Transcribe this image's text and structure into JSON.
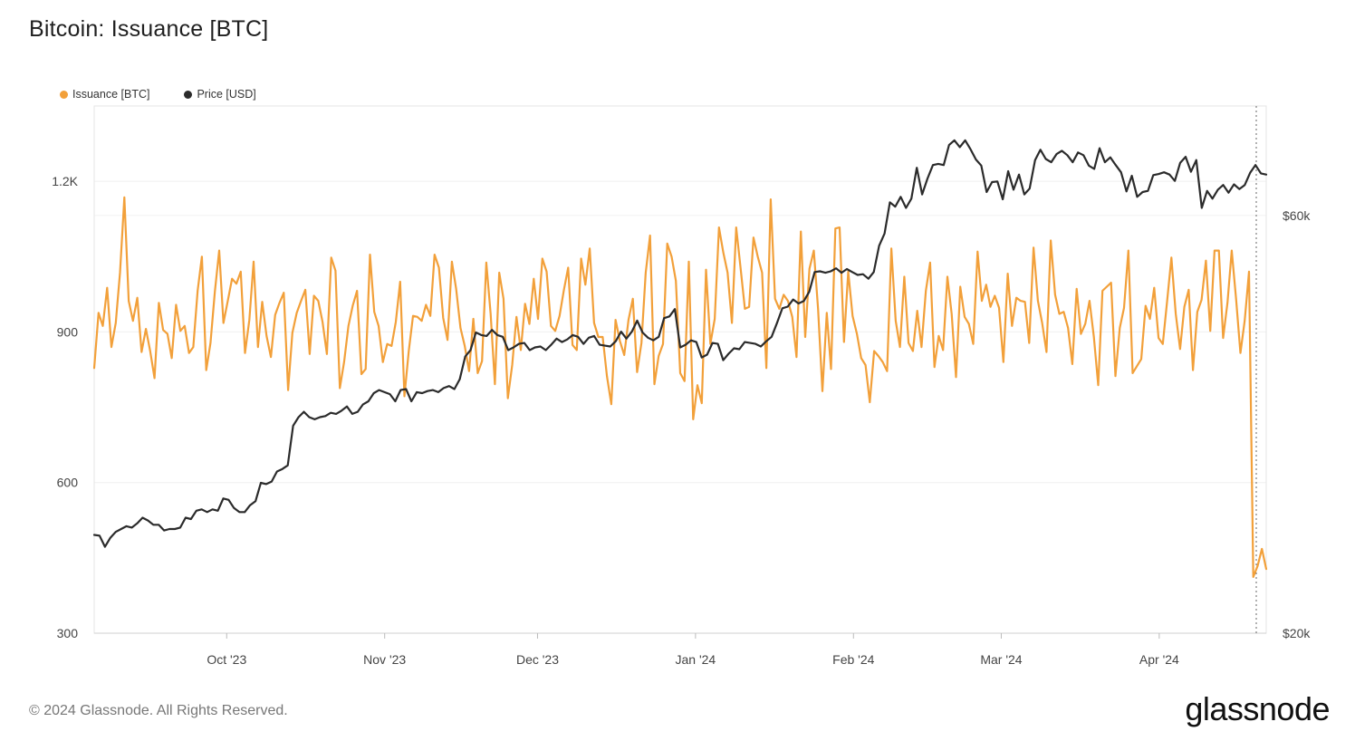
{
  "title": "Bitcoin: Issuance [BTC]",
  "footer": "© 2024 Glassnode. All Rights Reserved.",
  "brand": "glassnode",
  "legend": [
    {
      "label": "Issuance [BTC]",
      "color": "#f2a03a"
    },
    {
      "label": "Price [USD]",
      "color": "#2b2b2b"
    }
  ],
  "chart_data": {
    "type": "line",
    "x_start": "2023-09-05",
    "x_end": "2024-04-22",
    "x_tick_labels": [
      "Oct '23",
      "Nov '23",
      "Dec '23",
      "Jan '24",
      "Feb '24",
      "Mar '24",
      "Apr '24"
    ],
    "x_tick_dates": [
      "2023-10-01",
      "2023-11-01",
      "2023-12-01",
      "2024-01-01",
      "2024-02-01",
      "2024-03-01",
      "2024-04-01"
    ],
    "y_left": {
      "ticks": [
        300,
        600,
        900,
        1200
      ],
      "tick_labels": [
        "300",
        "600",
        "900",
        "1.2K"
      ],
      "range": [
        300,
        1350
      ]
    },
    "y_right": {
      "ticks": [
        20000,
        60000
      ],
      "tick_labels": [
        "$20k",
        "$60k"
      ],
      "range": [
        20000,
        80000
      ],
      "scale": "log"
    },
    "grid": true,
    "legend_position": "top-left",
    "series": [
      {
        "name": "Issuance [BTC]",
        "color": "#f2a03a",
        "axis": "left",
        "values": [
          828,
          938,
          912,
          988,
          870,
          918,
          1018,
          1168,
          962,
          922,
          968,
          860,
          906,
          862,
          808,
          958,
          904,
          896,
          848,
          954,
          902,
          912,
          858,
          870,
          982,
          1050,
          824,
          878,
          980,
          1062,
          918,
          962,
          1006,
          996,
          1020,
          858,
          924,
          1040,
          870,
          960,
          892,
          850,
          934,
          958,
          978,
          784,
          898,
          938,
          962,
          984,
          856,
          972,
          962,
          920,
          856,
          1048,
          1022,
          788,
          840,
          912,
          952,
          982,
          816,
          826,
          1054,
          940,
          912,
          840,
          876,
          872,
          920,
          1000,
          772,
          862,
          932,
          930,
          922,
          954,
          932,
          1054,
          1028,
          928,
          884,
          1040,
          986,
          908,
          872,
          822,
          926,
          818,
          842,
          1038,
          936,
          796,
          1018,
          966,
          768,
          834,
          930,
          864,
          956,
          916,
          1006,
          926,
          1046,
          1020,
          912,
          902,
          932,
          984,
          1028,
          874,
          864,
          1046,
          994,
          1066,
          918,
          890,
          890,
          812,
          756,
          924,
          882,
          854,
          924,
          966,
          820,
          878,
          1018,
          1092,
          796,
          852,
          876,
          1076,
          1050,
          1002,
          818,
          802,
          1040,
          726,
          794,
          758,
          1024,
          876,
          926,
          1108,
          1058,
          1018,
          918,
          1108,
          1028,
          946,
          950,
          1088,
          1050,
          1018,
          828,
          1164,
          966,
          946,
          974,
          962,
          930,
          850,
          1100,
          890,
          1026,
          1062,
          946,
          782,
          938,
          826,
          1106,
          1108,
          880,
          1020,
          932,
          896,
          848,
          834,
          760,
          862,
          852,
          840,
          822,
          1066,
          922,
          870,
          1010,
          878,
          862,
          942,
          870,
          982,
          1038,
          830,
          892,
          864,
          1010,
          936,
          810,
          990,
          930,
          916,
          876,
          1060,
          962,
          994,
          950,
          972,
          948,
          840,
          1016,
          912,
          968,
          962,
          960,
          878,
          1068,
          962,
          918,
          860,
          1082,
          974,
          936,
          940,
          908,
          836,
          986,
          896,
          916,
          962,
          890,
          794,
          982,
          990,
          998,
          812,
          908,
          948,
          1062,
          818,
          832,
          846,
          952,
          926,
          988,
          888,
          876,
          962,
          1048,
          936,
          866,
          950,
          984,
          824,
          940,
          964,
          1042,
          902,
          1062,
          1062,
          888,
          958,
          1062,
          966,
          858,
          922,
          1020,
          412,
          434,
          468,
          428
        ]
      },
      {
        "name": "Price [USD]",
        "color": "#2b2b2b",
        "axis": "right",
        "values": [
          25900,
          25850,
          25100,
          25700,
          26100,
          26300,
          26500,
          26400,
          26700,
          27100,
          26900,
          26600,
          26600,
          26200,
          26300,
          26300,
          26400,
          27100,
          27000,
          27600,
          27700,
          27500,
          27700,
          27600,
          28500,
          28400,
          27800,
          27500,
          27500,
          28000,
          28300,
          29700,
          29600,
          29800,
          30600,
          30800,
          31100,
          34500,
          35300,
          35800,
          35300,
          35100,
          35300,
          35400,
          35700,
          35600,
          35900,
          36300,
          35600,
          35800,
          36500,
          36800,
          37600,
          37900,
          37700,
          37500,
          36800,
          37900,
          38000,
          36800,
          37700,
          37600,
          37800,
          37900,
          37700,
          38100,
          38300,
          38000,
          39000,
          41400,
          42100,
          44100,
          43800,
          43700,
          44400,
          43800,
          43600,
          42100,
          42400,
          42800,
          42900,
          42100,
          42400,
          42500,
          42100,
          42700,
          43400,
          43000,
          43300,
          43800,
          43600,
          42800,
          43500,
          43700,
          42700,
          42600,
          42500,
          43100,
          44200,
          43400,
          44200,
          45500,
          44100,
          43500,
          43200,
          43600,
          45800,
          46000,
          46900,
          42400,
          42700,
          43200,
          43000,
          41300,
          41600,
          42900,
          42800,
          41000,
          41700,
          42300,
          42200,
          43000,
          42900,
          42800,
          42500,
          43100,
          43600,
          45200,
          47000,
          47200,
          48100,
          47600,
          47900,
          49100,
          51700,
          51800,
          51600,
          51800,
          52200,
          51600,
          52100,
          51700,
          51300,
          51400,
          50800,
          51700,
          55400,
          57200,
          62100,
          61400,
          63000,
          61200,
          62700,
          68000,
          63400,
          66100,
          68500,
          68700,
          68500,
          72200,
          73100,
          71800,
          73100,
          71400,
          69500,
          68400,
          63800,
          65500,
          65600,
          62600,
          67400,
          64200,
          66800,
          63400,
          64400,
          69400,
          71300,
          69600,
          69000,
          70500,
          71100,
          70300,
          69000,
          70800,
          70300,
          68400,
          67800,
          71600,
          69000,
          69900,
          68500,
          67200,
          63900,
          66600,
          63000,
          63800,
          64000,
          66700,
          66900,
          67200,
          66800,
          65700,
          68900,
          70000,
          67300,
          69400,
          61200,
          64000,
          62700,
          64200,
          65000,
          63700,
          65100,
          64300,
          65000,
          67100,
          68500,
          67000,
          66800
        ]
      }
    ]
  }
}
